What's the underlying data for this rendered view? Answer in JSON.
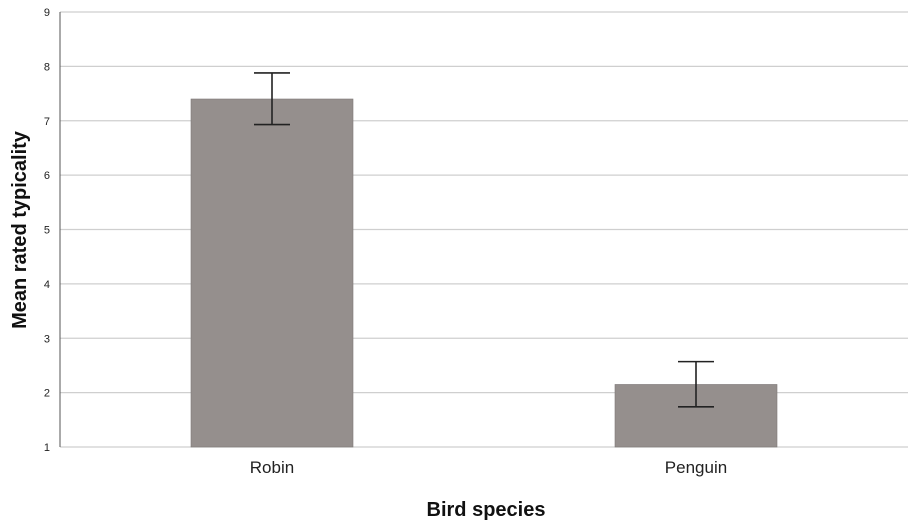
{
  "chart_data": {
    "type": "bar",
    "title": "",
    "xlabel": "Bird species",
    "ylabel": "Mean rated typicality",
    "categories": [
      "Robin",
      "Penguin"
    ],
    "values": [
      7.4,
      2.15
    ],
    "error_bars": {
      "lower": [
        6.93,
        1.74
      ],
      "upper": [
        7.88,
        2.57
      ]
    },
    "ylim": [
      1,
      9
    ],
    "yticks": [
      1,
      2,
      3,
      4,
      5,
      6,
      7,
      8,
      9
    ],
    "grid": true,
    "legend": "none",
    "colors": {
      "bar": "#958f8d",
      "bar_edge": "#7d7877",
      "grid": "#cfcfcf",
      "axis": "#555555",
      "error_bar": "#222222"
    }
  }
}
